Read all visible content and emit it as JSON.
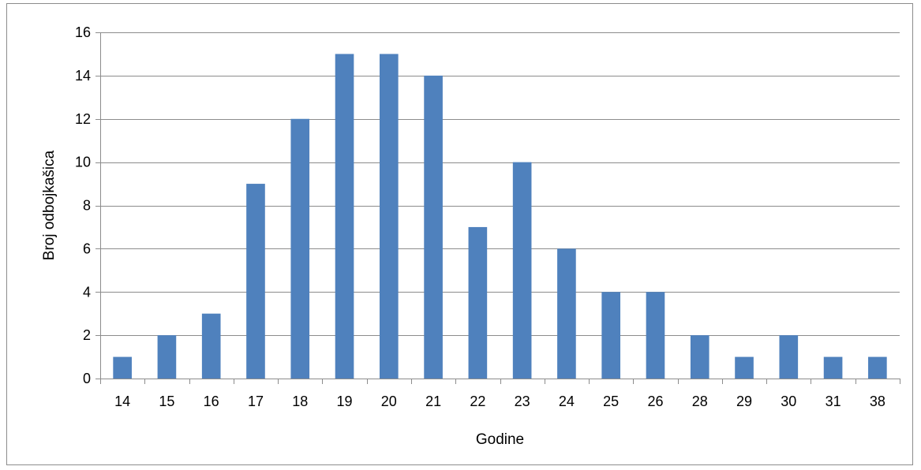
{
  "chart_data": {
    "type": "bar",
    "categories": [
      "14",
      "15",
      "16",
      "17",
      "18",
      "19",
      "20",
      "21",
      "22",
      "23",
      "24",
      "25",
      "26",
      "28",
      "29",
      "30",
      "31",
      "38"
    ],
    "values": [
      1,
      2,
      3,
      9,
      12,
      15,
      15,
      14,
      7,
      10,
      6,
      4,
      4,
      2,
      1,
      2,
      1,
      1
    ],
    "title": "",
    "xlabel": "Godine",
    "ylabel": "Broj odbojkašica",
    "ylim": [
      0,
      16
    ],
    "yticks": [
      0,
      2,
      4,
      6,
      8,
      10,
      12,
      14,
      16
    ],
    "grid": true,
    "legend": "none",
    "bar_color": "#4f81bd"
  }
}
